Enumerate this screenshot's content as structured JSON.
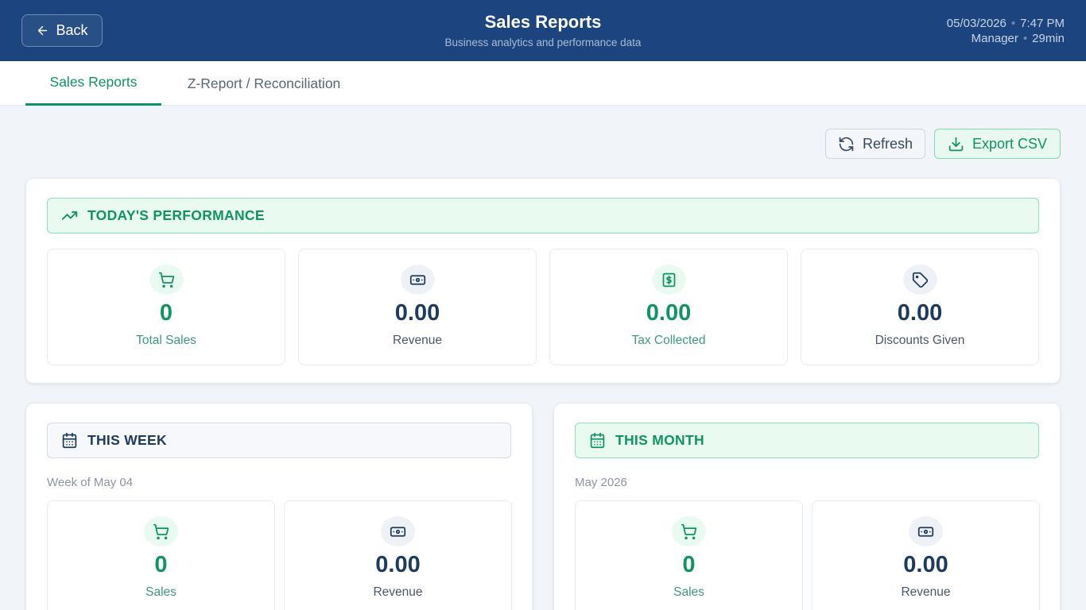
{
  "header": {
    "back_label": "Back",
    "title": "Sales Reports",
    "subtitle": "Business analytics and performance data",
    "date": "05/03/2026",
    "time": "7:47 PM",
    "role": "Manager",
    "session": "29min"
  },
  "tabs": [
    {
      "label": "Sales Reports",
      "active": true
    },
    {
      "label": "Z-Report / Reconciliation",
      "active": false
    }
  ],
  "toolbar": {
    "refresh_label": "Refresh",
    "refresh_icon": "refresh-icon",
    "export_label": "Export CSV",
    "export_icon": "download-icon"
  },
  "today": {
    "title": "TODAY'S PERFORMANCE",
    "icon": "trending-up-icon",
    "stats": [
      {
        "value": "0",
        "label": "Total Sales",
        "icon": "cart-icon"
      },
      {
        "value": "0.00",
        "label": "Revenue",
        "icon": "banknote-icon"
      },
      {
        "value": "0.00",
        "label": "Tax Collected",
        "icon": "dollar-receipt-icon"
      },
      {
        "value": "0.00",
        "label": "Discounts Given",
        "icon": "tag-icon"
      }
    ]
  },
  "week": {
    "title": "THIS WEEK",
    "icon": "calendar-icon",
    "period": "Week of May 04",
    "stats": [
      {
        "value": "0",
        "label": "Sales",
        "icon": "cart-icon"
      },
      {
        "value": "0.00",
        "label": "Revenue",
        "icon": "banknote-icon"
      }
    ]
  },
  "month": {
    "title": "THIS MONTH",
    "icon": "calendar-icon",
    "period": "May 2026",
    "stats": [
      {
        "value": "0",
        "label": "Sales",
        "icon": "cart-icon"
      },
      {
        "value": "0.00",
        "label": "Revenue",
        "icon": "banknote-icon"
      }
    ]
  },
  "colors": {
    "header_bg": "#1c4580",
    "accent_green": "#0f9462",
    "navy": "#1e3a5f",
    "page_bg": "#f1f4f8"
  }
}
